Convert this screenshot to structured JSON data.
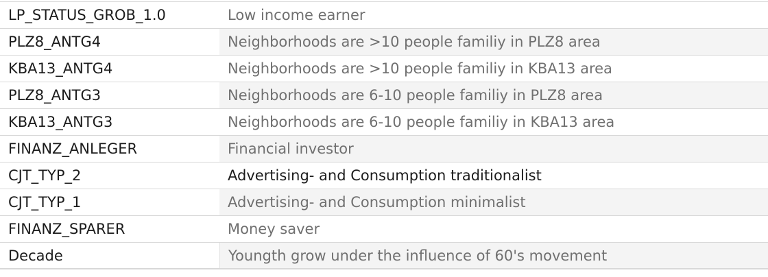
{
  "rows": [
    {
      "key": "LP_STATUS_GROB_1.0",
      "value": "Low income earner"
    },
    {
      "key": "PLZ8_ANTG4",
      "value": "Neighborhoods are >10 people familiy in PLZ8 area"
    },
    {
      "key": "KBA13_ANTG4",
      "value": "Neighborhoods are >10 people familiy in KBA13 area"
    },
    {
      "key": "PLZ8_ANTG3",
      "value": "Neighborhoods are 6-10 people familiy in PLZ8 area"
    },
    {
      "key": "KBA13_ANTG3",
      "value": "Neighborhoods are 6-10 people familiy in KBA13 area"
    },
    {
      "key": "FINANZ_ANLEGER",
      "value": "Financial investor"
    },
    {
      "key": "CJT_TYP_2",
      "value": "Advertising- and Consumption traditionalist"
    },
    {
      "key": "CJT_TYP_1",
      "value": "Advertising- and Consumption minimalist"
    },
    {
      "key": "FINANZ_SPARER",
      "value": "Money saver"
    },
    {
      "key": "Decade",
      "value": "Youngth grow under the influence of 60's movement"
    }
  ]
}
